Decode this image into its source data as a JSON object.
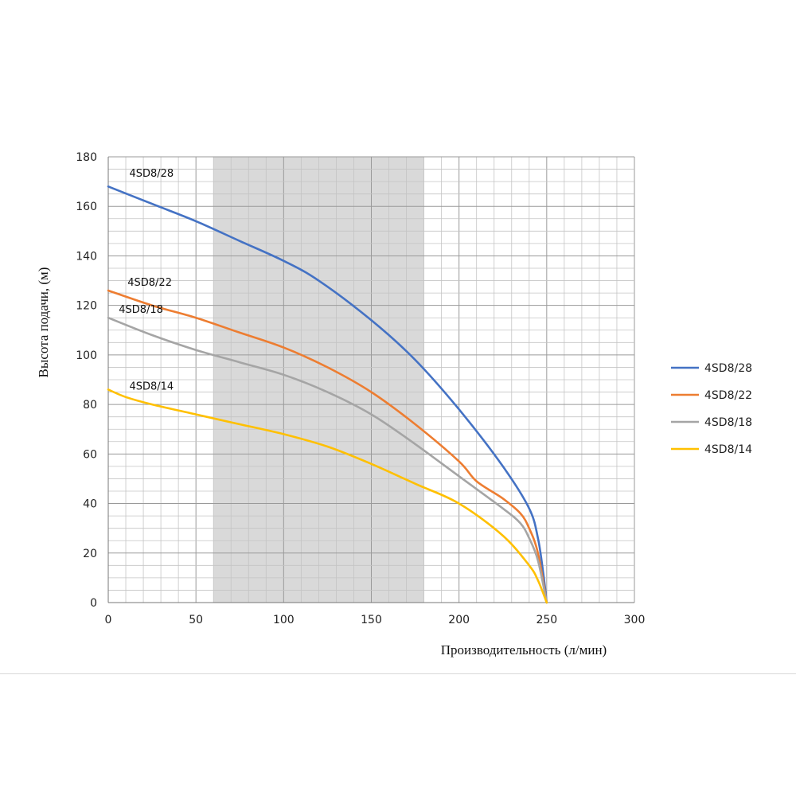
{
  "chart_data": {
    "type": "line",
    "title": "",
    "xlabel": "Производительность (л/мин)",
    "ylabel": "Высота подачи, (м)",
    "xlim": [
      0,
      300
    ],
    "ylim": [
      0,
      180
    ],
    "xticks": [
      0,
      50,
      100,
      150,
      200,
      250,
      300
    ],
    "yticks": [
      0,
      20,
      40,
      60,
      80,
      100,
      120,
      140,
      160,
      180
    ],
    "grid": true,
    "highlight_band": [
      60,
      180
    ],
    "legend_position": "right",
    "series": [
      {
        "name": "4SD8/28",
        "color": "#4472C4",
        "x": [
          0,
          25,
          50,
          75,
          100,
          120,
          150,
          175,
          200,
          225,
          240,
          245,
          248,
          250
        ],
        "y": [
          168,
          161,
          154,
          146,
          138,
          130,
          114,
          98,
          78,
          55,
          38,
          26,
          12,
          0
        ]
      },
      {
        "name": "4SD8/22",
        "color": "#ED7D31",
        "x": [
          0,
          25,
          50,
          75,
          100,
          125,
          150,
          175,
          200,
          210,
          225,
          235,
          240,
          245,
          250
        ],
        "y": [
          126,
          120,
          115,
          109,
          103,
          95,
          85,
          72,
          57,
          49,
          42,
          36,
          30,
          20,
          0
        ]
      },
      {
        "name": "4SD8/18",
        "color": "#A5A5A5",
        "x": [
          0,
          25,
          50,
          75,
          100,
          125,
          150,
          175,
          200,
          225,
          235,
          240,
          245,
          250
        ],
        "y": [
          115,
          108,
          102,
          97,
          92,
          85,
          76,
          64,
          51,
          38,
          32,
          26,
          17,
          0
        ]
      },
      {
        "name": "4SD8/14",
        "color": "#FFC000",
        "x": [
          0,
          10,
          25,
          50,
          75,
          100,
          125,
          150,
          175,
          200,
          225,
          240,
          245,
          250
        ],
        "y": [
          86,
          83,
          80,
          76,
          72,
          68,
          63,
          56,
          48,
          40,
          27,
          15,
          9,
          0
        ]
      }
    ],
    "curve_labels": [
      {
        "text": "4SD8/28",
        "x": 12,
        "y": 172
      },
      {
        "text": "4SD8/22",
        "x": 11,
        "y": 128
      },
      {
        "text": "4SD8/18",
        "x": 6,
        "y": 117
      },
      {
        "text": "4SD8/14",
        "x": 12,
        "y": 86
      }
    ]
  }
}
